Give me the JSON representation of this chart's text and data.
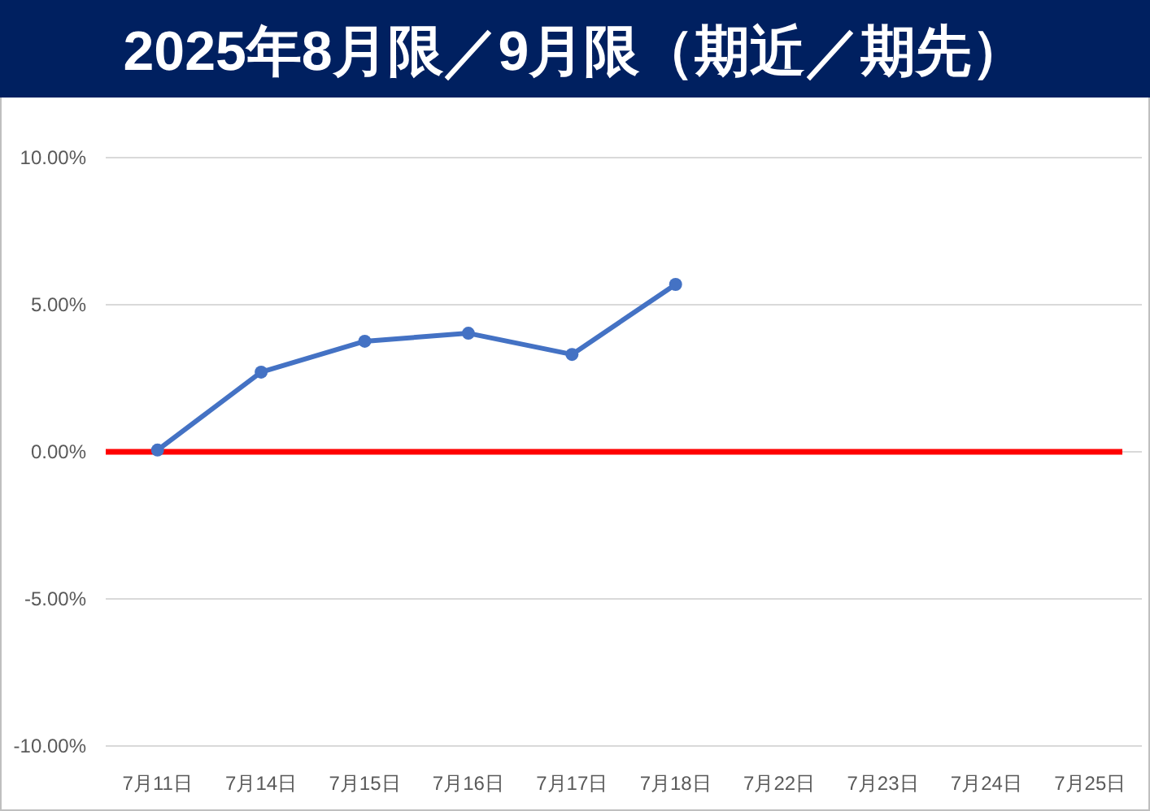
{
  "chart_data": {
    "type": "line",
    "title": "2025年8月限／9月限（期近／期先）",
    "categories": [
      "7月11日",
      "7月14日",
      "7月15日",
      "7月16日",
      "7月17日",
      "7月18日",
      "7月22日",
      "7月23日",
      "7月24日",
      "7月25日"
    ],
    "series": [
      {
        "color": "#4472c4",
        "values": [
          0.06,
          2.71,
          3.76,
          4.03,
          3.31,
          5.69,
          null,
          null,
          null,
          null
        ]
      }
    ],
    "ylim": [
      -10,
      10
    ],
    "yticks": [
      {
        "value": -10,
        "label": "-10.00%"
      },
      {
        "value": -5,
        "label": "-5.00%"
      },
      {
        "value": 0,
        "label": "0.00%"
      },
      {
        "value": 5,
        "label": "5.00%"
      },
      {
        "value": 10,
        "label": "10.00%"
      }
    ],
    "ref_lines": [
      {
        "axis": "y",
        "value": 0,
        "color": "#ff0000"
      }
    ],
    "grid": "y",
    "marker": "circle",
    "line_style": "solid"
  }
}
